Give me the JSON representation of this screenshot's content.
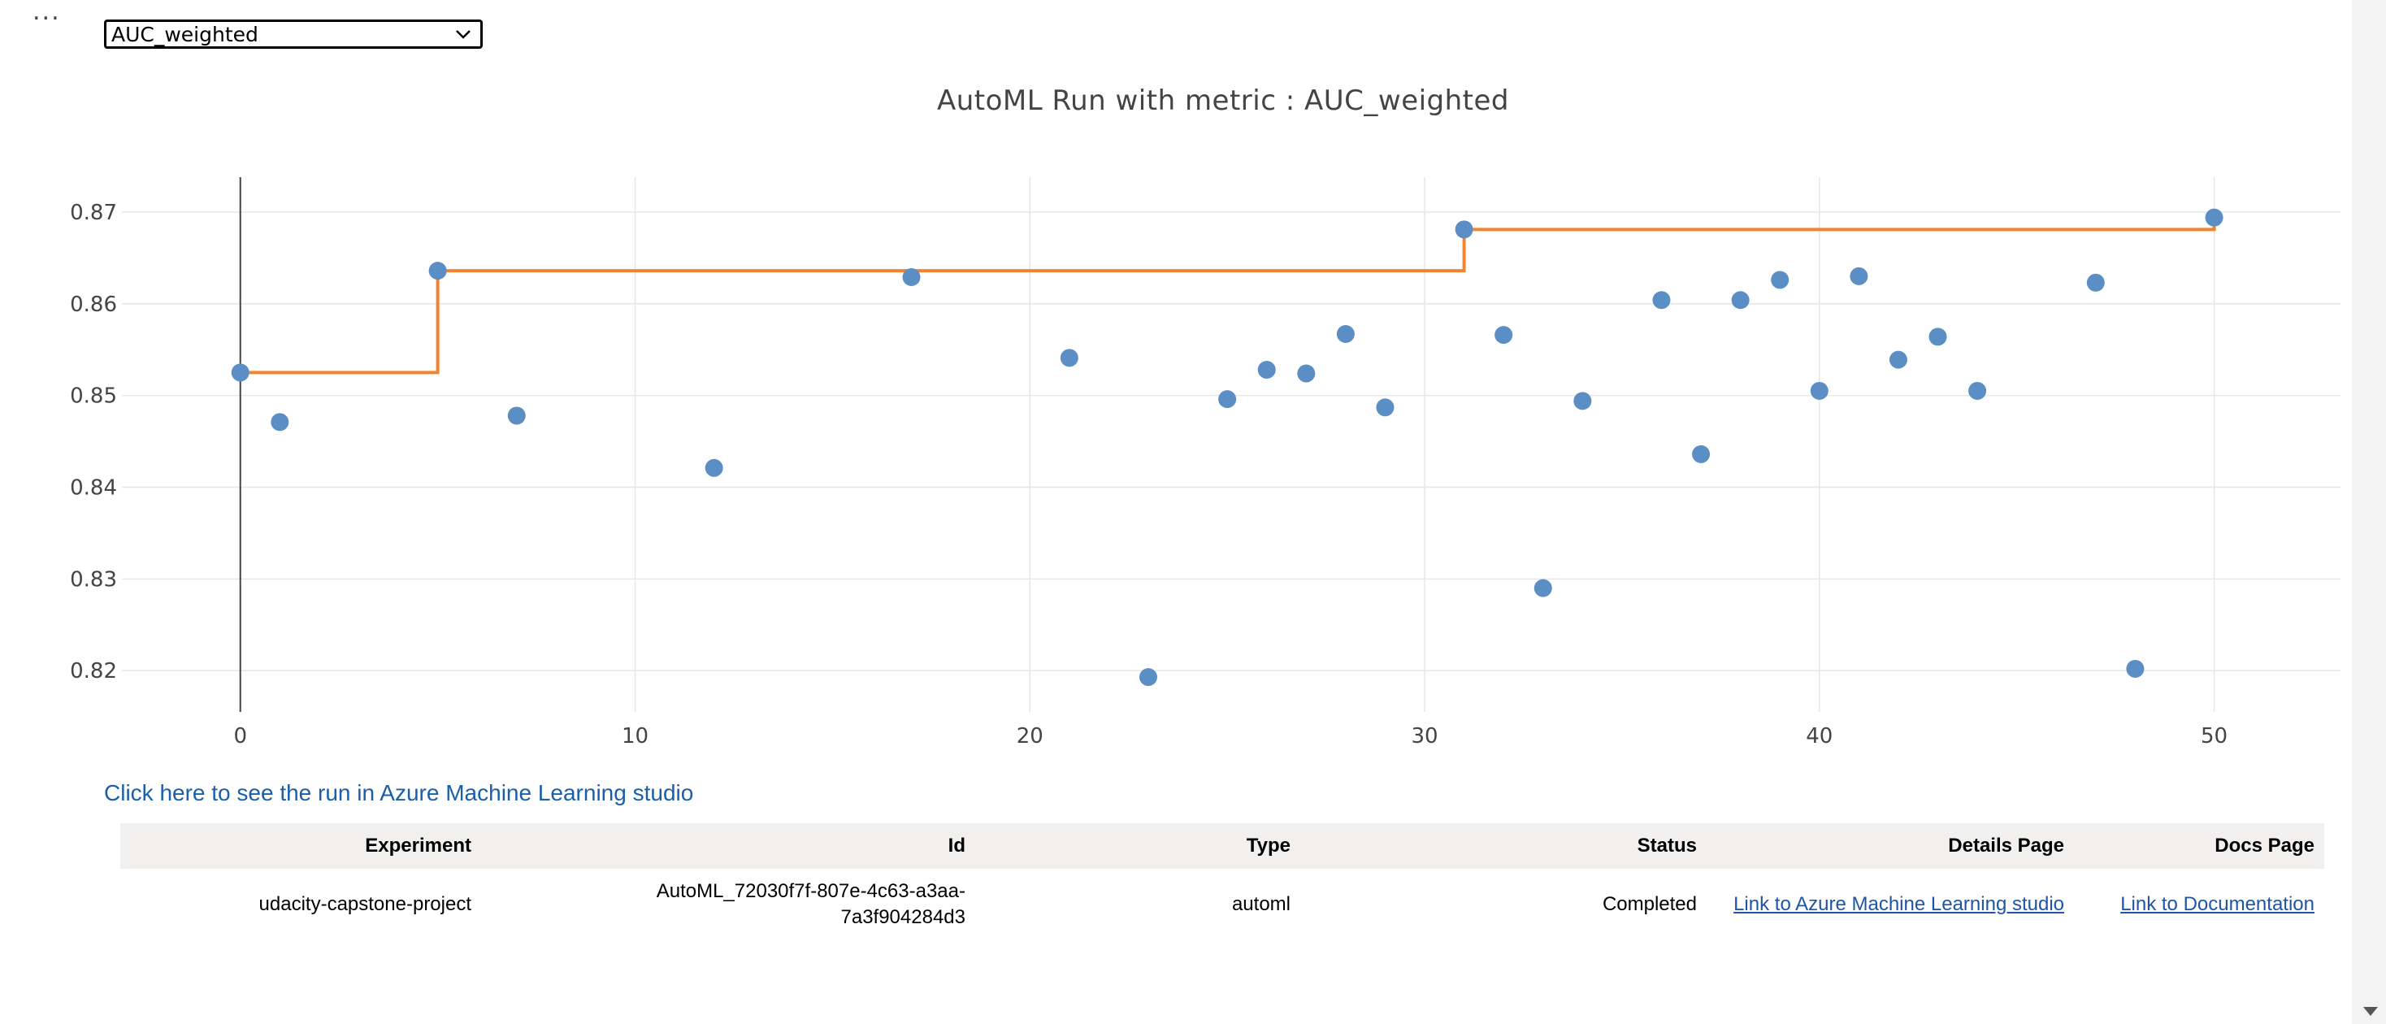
{
  "menu": {
    "ellipsis": "..."
  },
  "selector": {
    "selected": "AUC_weighted"
  },
  "chart_data": {
    "type": "scatter",
    "title": "AutoML Run with metric : AUC_weighted",
    "xlabel": "",
    "ylabel": "",
    "xlim": [
      -3.0,
      53.2
    ],
    "ylim": [
      0.8155,
      0.8738
    ],
    "x_ticks": [
      0,
      10,
      20,
      30,
      40,
      50
    ],
    "y_ticks": [
      0.82,
      0.83,
      0.84,
      0.85,
      0.86,
      0.87
    ],
    "x_tick_labels": [
      "0",
      "10",
      "20",
      "30",
      "40",
      "50"
    ],
    "y_tick_labels": [
      "0.82",
      "0.83",
      "0.84",
      "0.85",
      "0.86",
      "0.87"
    ],
    "grid": true,
    "series": [
      {
        "type": "scatter",
        "color": "#5b8ec4",
        "x": [
          0,
          1,
          5,
          7,
          12,
          17,
          21,
          23,
          25,
          26,
          27,
          28,
          29,
          31,
          32,
          33,
          34,
          36,
          37,
          38,
          39,
          40,
          41,
          42,
          43,
          44,
          47,
          48,
          50
        ],
        "y": [
          0.8525,
          0.8471,
          0.8636,
          0.8478,
          0.8421,
          0.8629,
          0.8541,
          0.8193,
          0.8496,
          0.8528,
          0.8524,
          0.8567,
          0.8487,
          0.8681,
          0.8566,
          0.829,
          0.8494,
          0.8604,
          0.8436,
          0.8604,
          0.8626,
          0.8505,
          0.863,
          0.8539,
          0.8564,
          0.8505,
          0.8623,
          0.8202,
          0.8694
        ]
      },
      {
        "type": "step",
        "color": "#f28430",
        "x": [
          0,
          5,
          31,
          50
        ],
        "y": [
          0.8525,
          0.8636,
          0.8681,
          0.8694
        ]
      }
    ],
    "vertical_line_x": 0
  },
  "link_text": "Click here to see the run in Azure Machine Learning studio",
  "table": {
    "headers": [
      "Experiment",
      "Id",
      "Type",
      "Status",
      "Details Page",
      "Docs Page"
    ],
    "row": {
      "experiment": "udacity-capstone-project",
      "id_line1": "AutoML_72030f7f-807e-4c63-a3aa-",
      "id_line2": "7a3f904284d3",
      "type": "automl",
      "status": "Completed",
      "details_link": "Link to Azure Machine Learning studio",
      "docs_link": "Link to Documentation"
    }
  }
}
